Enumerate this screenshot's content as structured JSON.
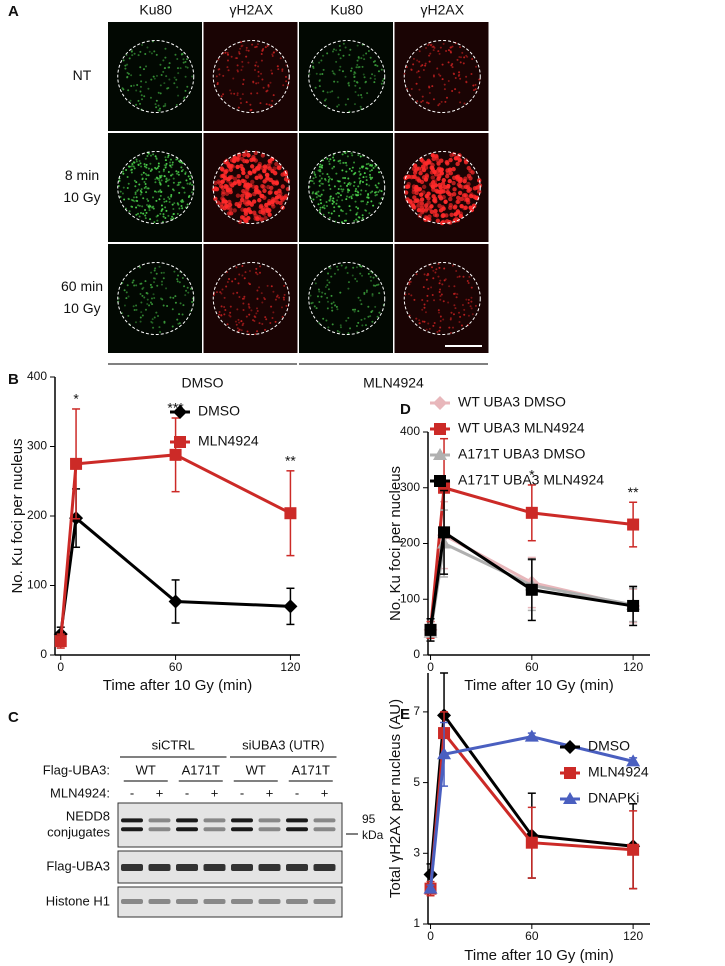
{
  "panel_a": {
    "label": "A",
    "columns": [
      "Ku80",
      "γH2AX",
      "Ku80",
      "γH2AX"
    ],
    "rows": [
      [
        "NT"
      ],
      [
        "8 min",
        "10 Gy"
      ],
      [
        "60 min",
        "10 Gy"
      ]
    ],
    "groups": [
      "DMSO",
      "MLN4924"
    ]
  },
  "panel_c": {
    "label": "C",
    "groups": [
      "siCTRL",
      "siUBA3 (UTR)"
    ],
    "row1_label": "Flag-UBA3:",
    "row1": [
      "WT",
      "A171T",
      "WT",
      "A171T"
    ],
    "row2_label": "MLN4924:",
    "row2": [
      "-",
      "+",
      "-",
      "+",
      "-",
      "+",
      "-",
      "+"
    ],
    "blots": [
      [
        "NEDD8",
        "conjugates"
      ],
      [
        "Flag-UBA3"
      ],
      [
        "Histone H1"
      ]
    ],
    "size_marker": [
      "95",
      "kDa"
    ]
  },
  "chart_data": [
    {
      "type": "line",
      "panel_label": "B",
      "ylabel": "No. Ku foci per nucleus",
      "xlabel": "Time after 10 Gy (min)",
      "x": [
        0,
        8,
        60,
        120
      ],
      "xlim": [
        -3,
        125
      ],
      "xticks": [
        0,
        60,
        120
      ],
      "ylim": [
        0,
        400
      ],
      "yticks": [
        0,
        100,
        200,
        300,
        400
      ],
      "legend": "upper right",
      "series": [
        {
          "name": "DMSO",
          "color": "#000000",
          "marker": "diamond",
          "values": [
            30,
            197,
            77,
            70
          ],
          "errors": [
            10,
            42,
            31,
            26
          ]
        },
        {
          "name": "MLN4924",
          "color": "#cc2a27",
          "marker": "square",
          "values": [
            20,
            275,
            288,
            204
          ],
          "errors": [
            10,
            79,
            53,
            61
          ]
        }
      ],
      "annotations": [
        {
          "x": 8,
          "text": "*",
          "color": "#000000"
        },
        {
          "x": 60,
          "text": "***",
          "color": "#000000"
        },
        {
          "x": 120,
          "text": "**",
          "color": "#000000"
        }
      ]
    },
    {
      "type": "line",
      "panel_label": "D",
      "ylabel": "No. Ku foci per nucleus",
      "xlabel": "Time after 10 Gy (min)",
      "x": [
        0,
        8,
        60,
        120
      ],
      "xlim": [
        -1.5,
        130
      ],
      "xticks": [
        0,
        60,
        120
      ],
      "ylim": [
        0,
        400
      ],
      "yticks": [
        0,
        100,
        200,
        300,
        400
      ],
      "legend": "top",
      "series": [
        {
          "name": "WT UBA3 DMSO",
          "color": "#e8b7bb",
          "marker": "diamond",
          "values": [
            45,
            215,
            130,
            88
          ],
          "errors": [
            15,
            60,
            45,
            30
          ]
        },
        {
          "name": "WT UBA3 MLN4924",
          "color": "#cc2a27",
          "marker": "square",
          "values": [
            45,
            300,
            255,
            234
          ],
          "errors": [
            15,
            88,
            50,
            40
          ]
        },
        {
          "name": "A171T UBA3 DMSO",
          "color": "#b0b0b0",
          "marker": "triangle",
          "values": [
            40,
            200,
            125,
            90
          ],
          "errors": [
            15,
            60,
            45,
            30
          ]
        },
        {
          "name": "A171T UBA3 MLN4924",
          "color": "#000000",
          "marker": "square",
          "values": [
            45,
            220,
            117,
            88
          ],
          "errors": [
            20,
            75,
            55,
            35
          ]
        }
      ],
      "annotations": [
        {
          "x": 60,
          "text": "*",
          "color": "#cc2a27"
        },
        {
          "x": 120,
          "text": "**",
          "color": "#cc2a27"
        }
      ]
    },
    {
      "type": "line",
      "panel_label": "E",
      "ylabel": "Total γH2AX per nucleus (AU)",
      "xlabel": "Time after 10 Gy (min)",
      "x": [
        0,
        8,
        60,
        120
      ],
      "xlim": [
        -1.5,
        130
      ],
      "xticks": [
        0,
        60,
        120
      ],
      "ylim": [
        1,
        8.1
      ],
      "yticks": [
        1,
        3,
        5,
        7
      ],
      "legend": "right",
      "series": [
        {
          "name": "DMSO",
          "color": "#000000",
          "marker": "diamond",
          "values": [
            2.4,
            6.9,
            3.5,
            3.2
          ],
          "errors": [
            0.3,
            1.2,
            1.2,
            1.2
          ]
        },
        {
          "name": "MLN4924",
          "color": "#cc2a27",
          "marker": "square",
          "values": [
            2.0,
            6.4,
            3.3,
            3.1
          ],
          "errors": [
            0.2,
            0.6,
            1.0,
            1.1
          ]
        },
        {
          "name": "DNAPKi",
          "color": "#4a5fc0",
          "marker": "triangle",
          "values": [
            2.0,
            5.8,
            6.3,
            5.6
          ],
          "errors": [
            0.1,
            0.9,
            0.1,
            0.1
          ]
        }
      ],
      "annotations": []
    }
  ]
}
